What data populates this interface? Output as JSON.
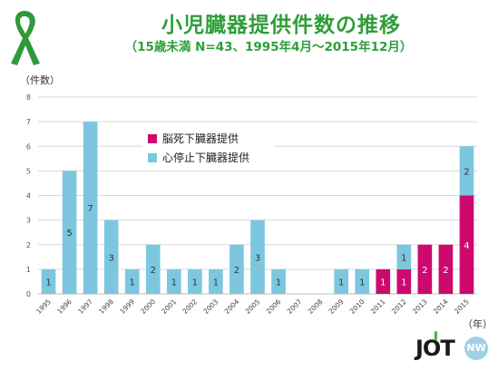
{
  "header": {
    "title": "小児臓器提供件数の推移",
    "subtitle": "（15歳未満 N=43、1995年4月～2015年12月）"
  },
  "axis": {
    "ylabel": "（件数）",
    "xlabel": "（年）"
  },
  "logo": {
    "text": "JOT",
    "badge": "NW"
  },
  "colors": {
    "brain_death": "#cc0a6e",
    "cardiac_arrest": "#7cc7df",
    "title_green": "#2f9e3a",
    "ribbon_green": "#2e9a3a"
  },
  "chart_data": {
    "type": "bar",
    "stacked": true,
    "title": "小児臓器提供件数の推移",
    "subtitle": "（15歳未満 N=43、1995年4月～2015年12月）",
    "ylabel": "（件数）",
    "xlabel": "（年）",
    "ylim": [
      0,
      8
    ],
    "yticks": [
      0,
      1,
      2,
      3,
      4,
      5,
      6,
      7,
      8
    ],
    "grid": true,
    "legend_position": "top-left",
    "categories": [
      "1995",
      "1996",
      "1997",
      "1998",
      "1999",
      "2000",
      "2001",
      "2002",
      "2003",
      "2004",
      "2005",
      "2006",
      "2007",
      "2008",
      "2009",
      "2010",
      "2011",
      "2012",
      "2013",
      "2014",
      "2015"
    ],
    "series": [
      {
        "name": "脳死下臓器提供",
        "values": [
          0,
          0,
          0,
          0,
          0,
          0,
          0,
          0,
          0,
          0,
          0,
          0,
          0,
          0,
          0,
          0,
          1,
          1,
          2,
          2,
          4
        ]
      },
      {
        "name": "心停止下臓器提供",
        "values": [
          1,
          5,
          7,
          3,
          1,
          2,
          1,
          1,
          1,
          2,
          3,
          1,
          0,
          0,
          1,
          1,
          0,
          1,
          0,
          0,
          2
        ]
      }
    ]
  }
}
